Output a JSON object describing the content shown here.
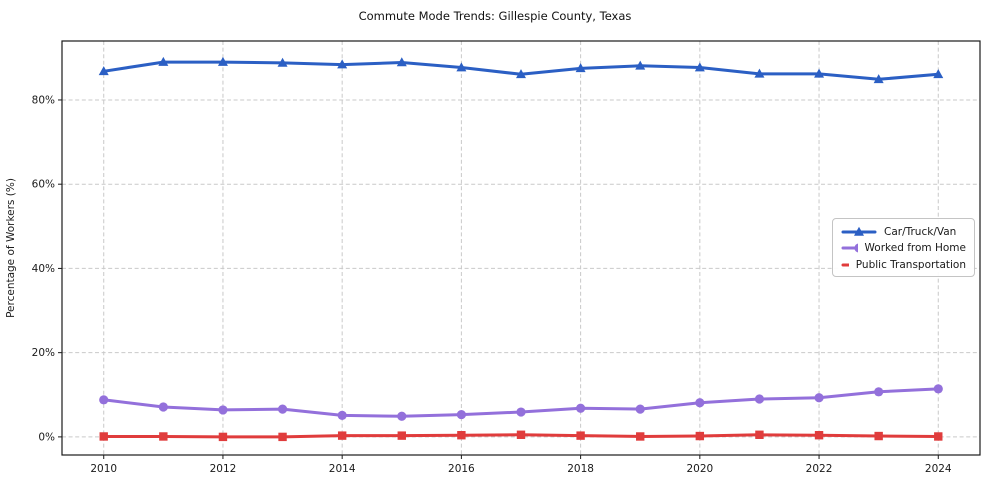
{
  "chart_data": {
    "type": "line",
    "title": "Commute Mode Trends: Gillespie County, Texas",
    "xlabel": "",
    "ylabel": "Percentage of Workers (%)",
    "x": [
      2010,
      2011,
      2012,
      2013,
      2014,
      2015,
      2016,
      2017,
      2018,
      2019,
      2020,
      2021,
      2022,
      2023,
      2024
    ],
    "series": [
      {
        "id": "car-truck-van",
        "name": "Car/Truck/Van",
        "color": "#2b5fc4",
        "marker": "triangle",
        "values": [
          86.8,
          89.0,
          89.0,
          88.8,
          88.4,
          88.9,
          87.7,
          86.1,
          87.5,
          88.1,
          87.7,
          86.2,
          86.2,
          84.9,
          86.1
        ]
      },
      {
        "id": "worked-from-home",
        "name": "Worked from Home",
        "color": "#9370db",
        "marker": "circle",
        "values": [
          8.8,
          7.1,
          6.4,
          6.6,
          5.1,
          4.9,
          5.3,
          5.9,
          6.8,
          6.6,
          8.1,
          9.0,
          9.3,
          10.7,
          11.4
        ]
      },
      {
        "id": "public-transportation",
        "name": "Public Transportation",
        "color": "#e03c3c",
        "marker": "square",
        "values": [
          0.1,
          0.1,
          0.0,
          0.0,
          0.3,
          0.3,
          0.4,
          0.5,
          0.3,
          0.1,
          0.2,
          0.5,
          0.4,
          0.2,
          0.1
        ]
      }
    ],
    "xticks": [
      {
        "value": 2010,
        "label": "2010"
      },
      {
        "value": 2012,
        "label": "2012"
      },
      {
        "value": 2014,
        "label": "2014"
      },
      {
        "value": 2016,
        "label": "2016"
      },
      {
        "value": 2018,
        "label": "2018"
      },
      {
        "value": 2020,
        "label": "2020"
      },
      {
        "value": 2022,
        "label": "2022"
      },
      {
        "value": 2024,
        "label": "2024"
      }
    ],
    "yticks": [
      {
        "value": 0,
        "label": "0%"
      },
      {
        "value": 20,
        "label": "20%"
      },
      {
        "value": 40,
        "label": "40%"
      },
      {
        "value": 60,
        "label": "60%"
      },
      {
        "value": 80,
        "label": "80%"
      }
    ],
    "xlim": [
      2009.3,
      2024.7
    ],
    "ylim": [
      -4.3,
      94.0
    ],
    "grid": true,
    "legend_position": "center-right"
  }
}
